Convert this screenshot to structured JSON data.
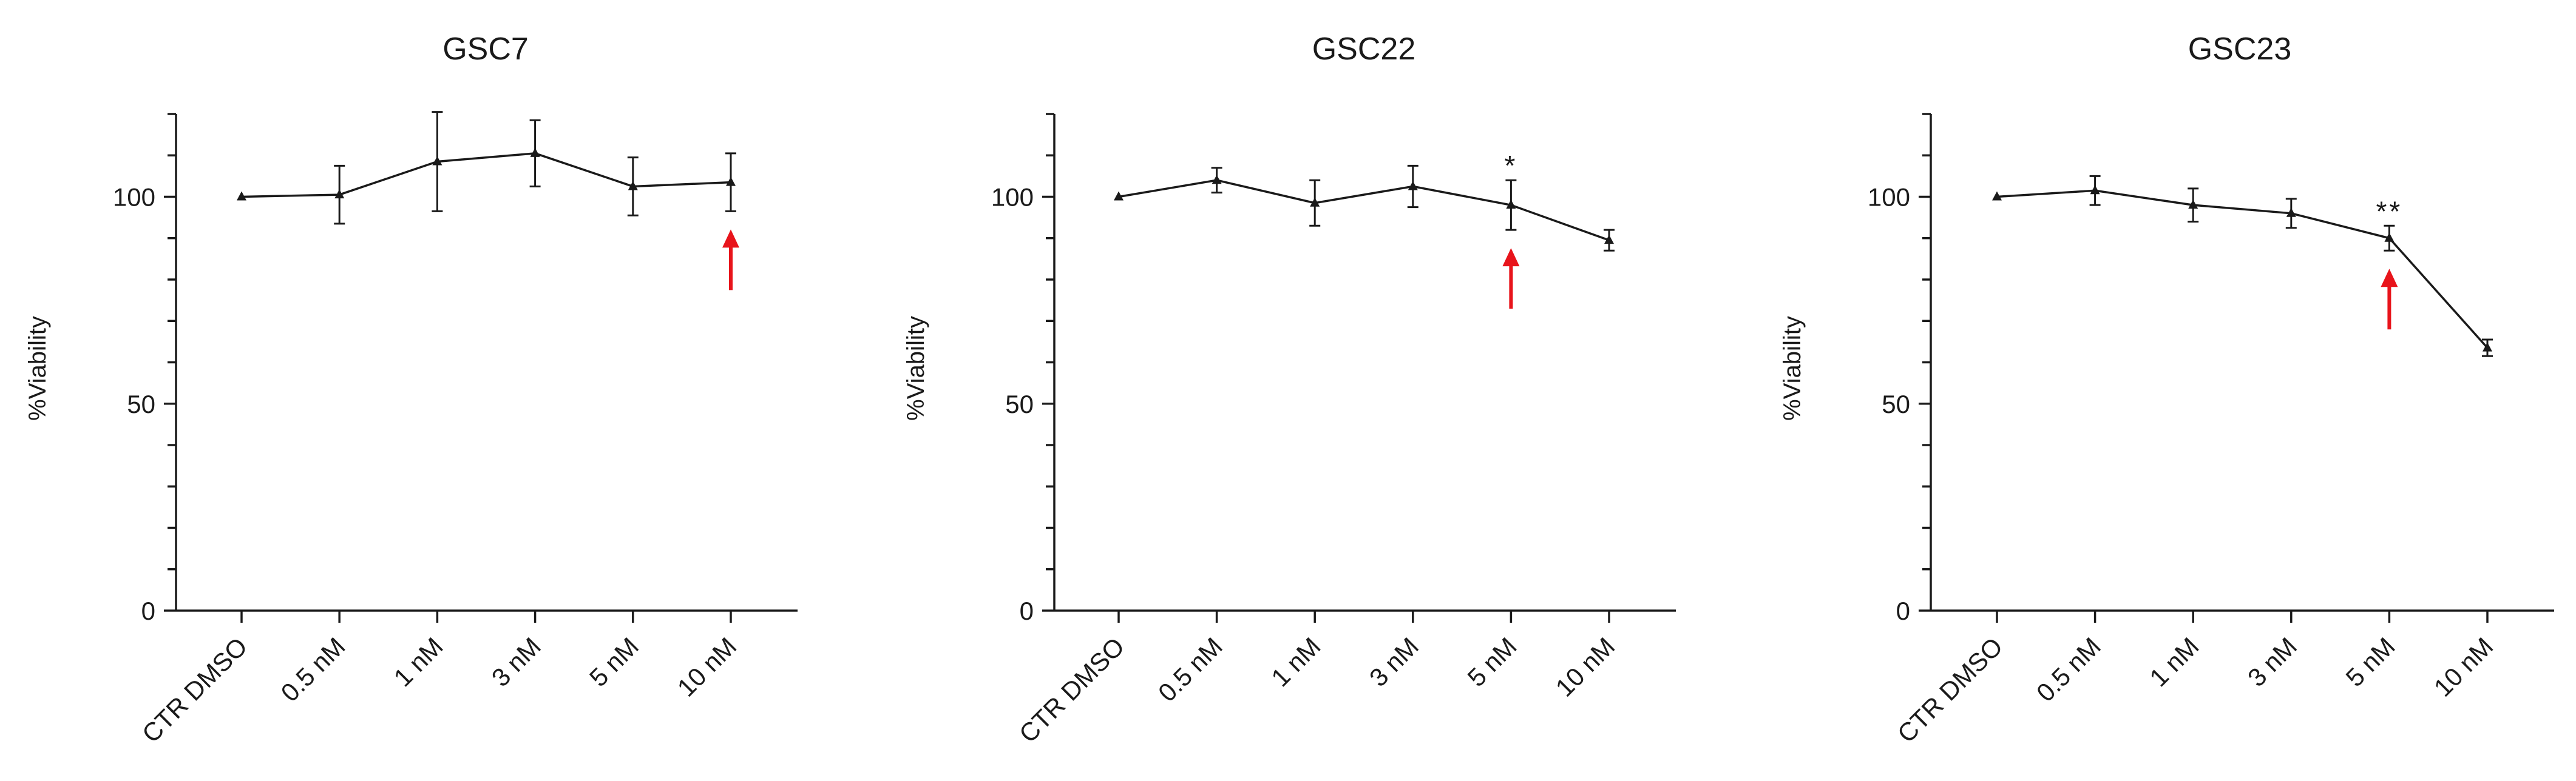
{
  "chart_data": [
    {
      "type": "line",
      "title": "GSC7",
      "xlabel": "",
      "ylabel": "%Viability",
      "categories": [
        "CTR DMSO",
        "0.5 nM",
        "1 nM",
        "3 nM",
        "5 nM",
        "10 nM"
      ],
      "values": [
        100,
        100.5,
        108.5,
        110.5,
        102.5,
        103.5
      ],
      "errors": [
        0,
        7,
        12,
        8,
        7,
        7
      ],
      "ylim": [
        0,
        120
      ],
      "yticks": [
        0,
        50,
        100
      ],
      "significance": [
        "",
        "",
        "",
        "",
        "",
        ""
      ],
      "arrow_at": "10 nM",
      "arrow_color": "#e8141b",
      "grid": false
    },
    {
      "type": "line",
      "title": "GSC22",
      "xlabel": "",
      "ylabel": "%Viability",
      "categories": [
        "CTR DMSO",
        "0.5 nM",
        "1 nM",
        "3 nM",
        "5 nM",
        "10 nM"
      ],
      "values": [
        100,
        104,
        98.5,
        102.5,
        98,
        89.5
      ],
      "errors": [
        0,
        3,
        5.5,
        5,
        6,
        2.5
      ],
      "ylim": [
        0,
        120
      ],
      "yticks": [
        0,
        50,
        100
      ],
      "significance": [
        "",
        "",
        "",
        "",
        "*",
        ""
      ],
      "arrow_at": "5 nM",
      "arrow_color": "#e8141b",
      "grid": false
    },
    {
      "type": "line",
      "title": "GSC23",
      "xlabel": "",
      "ylabel": "%Viability",
      "categories": [
        "CTR DMSO",
        "0.5 nM",
        "1 nM",
        "3 nM",
        "5 nM",
        "10 nM"
      ],
      "values": [
        100,
        101.5,
        98,
        96,
        90,
        63.5
      ],
      "errors": [
        0,
        3.5,
        4,
        3.5,
        3,
        2
      ],
      "ylim": [
        0,
        120
      ],
      "yticks": [
        0,
        50,
        100
      ],
      "significance": [
        "",
        "",
        "",
        "",
        "**",
        ""
      ],
      "arrow_at": "5 nM",
      "arrow_color": "#e8141b",
      "grid": false
    }
  ]
}
